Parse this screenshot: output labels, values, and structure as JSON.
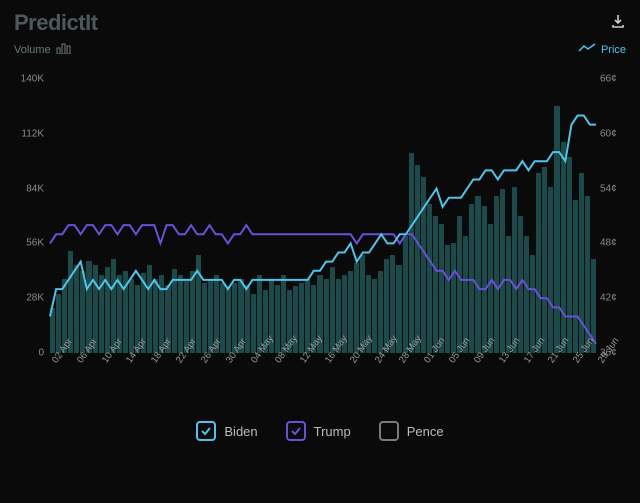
{
  "logo": {
    "prefix": "Predict",
    "suffix": "It"
  },
  "header": {
    "download_icon": "download-icon"
  },
  "subheader": {
    "volume_label": "Volume",
    "price_label": "Price"
  },
  "chart": {
    "type": "bar+line",
    "background_color": "#0a0a0a",
    "bar_color": "#1a4a4a",
    "y_left": {
      "min": 0,
      "max": 140000,
      "ticks": [
        0,
        28000,
        56000,
        84000,
        112000,
        140000
      ],
      "labels": [
        "0",
        "28K",
        "56K",
        "84K",
        "112K",
        "140K"
      ],
      "fontsize": 10,
      "color": "#8a8a8a"
    },
    "y_right": {
      "min": 36,
      "max": 66,
      "ticks": [
        36,
        42,
        48,
        54,
        60,
        66
      ],
      "labels": [
        "36¢",
        "42¢",
        "48¢",
        "54¢",
        "60¢",
        "66¢"
      ],
      "fontsize": 10,
      "color": "#8a8a8a"
    },
    "x": {
      "labels": [
        "02 Apr",
        "06 Apr",
        "10 Apr",
        "14 Apr",
        "18 Apr",
        "22 Apr",
        "26 Apr",
        "30 Apr",
        "04 May",
        "08 May",
        "12 May",
        "16 May",
        "20 May",
        "24 May",
        "28 May",
        "01 Jun",
        "05 Jun",
        "09 Jun",
        "13 Jun",
        "17 Jun",
        "21 Jun",
        "25 Jun",
        "29 Jun"
      ],
      "rotation": -55,
      "fontsize": 9.5,
      "color": "#9a9a9a"
    },
    "volume": [
      23000,
      30000,
      38000,
      52000,
      45000,
      42000,
      47000,
      45000,
      40000,
      44000,
      48000,
      40000,
      42000,
      38000,
      35000,
      41000,
      45000,
      38000,
      40000,
      35000,
      43000,
      40000,
      37000,
      42000,
      50000,
      36000,
      38000,
      40000,
      36000,
      34000,
      36000,
      38000,
      35000,
      30000,
      40000,
      32000,
      38000,
      35000,
      40000,
      32000,
      34000,
      36000,
      38000,
      35000,
      40000,
      38000,
      44000,
      38000,
      40000,
      42000,
      46000,
      50000,
      40000,
      38000,
      42000,
      48000,
      50000,
      45000,
      60000,
      102000,
      96000,
      90000,
      76000,
      70000,
      66000,
      55000,
      56000,
      70000,
      60000,
      76000,
      80000,
      75000,
      66000,
      80000,
      84000,
      60000,
      85000,
      70000,
      60000,
      50000,
      92000,
      95000,
      85000,
      126000,
      108000,
      100000,
      78000,
      92000,
      80000,
      48000
    ],
    "series": {
      "biden": {
        "label": "Biden",
        "color": "#4ec5e8",
        "checked": true,
        "values": [
          40,
          43,
          43,
          44,
          45,
          46,
          43,
          44,
          43,
          44,
          43,
          44,
          43,
          44,
          45,
          44,
          43,
          44,
          43,
          43,
          44,
          44,
          44,
          44,
          45,
          44,
          44,
          44,
          44,
          43,
          44,
          44,
          43,
          44,
          44,
          44,
          44,
          44,
          44,
          44,
          44,
          44,
          44,
          45,
          45,
          46,
          46,
          47,
          47,
          48,
          46,
          47,
          47,
          48,
          49,
          48,
          48,
          49,
          49,
          50,
          51,
          52,
          53,
          54,
          52,
          53,
          53,
          53,
          54,
          55,
          55,
          56,
          56,
          55,
          56,
          56,
          56,
          57,
          56,
          57,
          57,
          57,
          58,
          58,
          57,
          61,
          62,
          62,
          61,
          61
        ]
      },
      "trump": {
        "label": "Trump",
        "color": "#6b4fd8",
        "checked": true,
        "values": [
          48,
          49,
          49,
          50,
          50,
          49,
          50,
          50,
          49,
          50,
          50,
          49,
          50,
          50,
          49,
          50,
          50,
          50,
          48,
          50,
          50,
          49,
          49,
          50,
          49,
          49,
          50,
          49,
          49,
          48,
          49,
          49,
          50,
          49,
          49,
          49,
          49,
          49,
          49,
          49,
          49,
          49,
          49,
          49,
          49,
          49,
          49,
          49,
          49,
          49,
          48,
          49,
          49,
          49,
          49,
          49,
          49,
          48,
          49,
          49,
          48,
          47,
          46,
          45,
          45,
          44,
          45,
          44,
          44,
          44,
          43,
          43,
          44,
          43,
          44,
          44,
          43,
          44,
          43,
          43,
          42,
          42,
          41,
          41,
          40,
          40,
          40,
          39,
          38,
          37
        ]
      },
      "pence": {
        "label": "Pence",
        "color": "#7a7a7a",
        "checked": false
      }
    }
  },
  "legend": {
    "biden": "Biden",
    "trump": "Trump",
    "pence": "Pence"
  }
}
